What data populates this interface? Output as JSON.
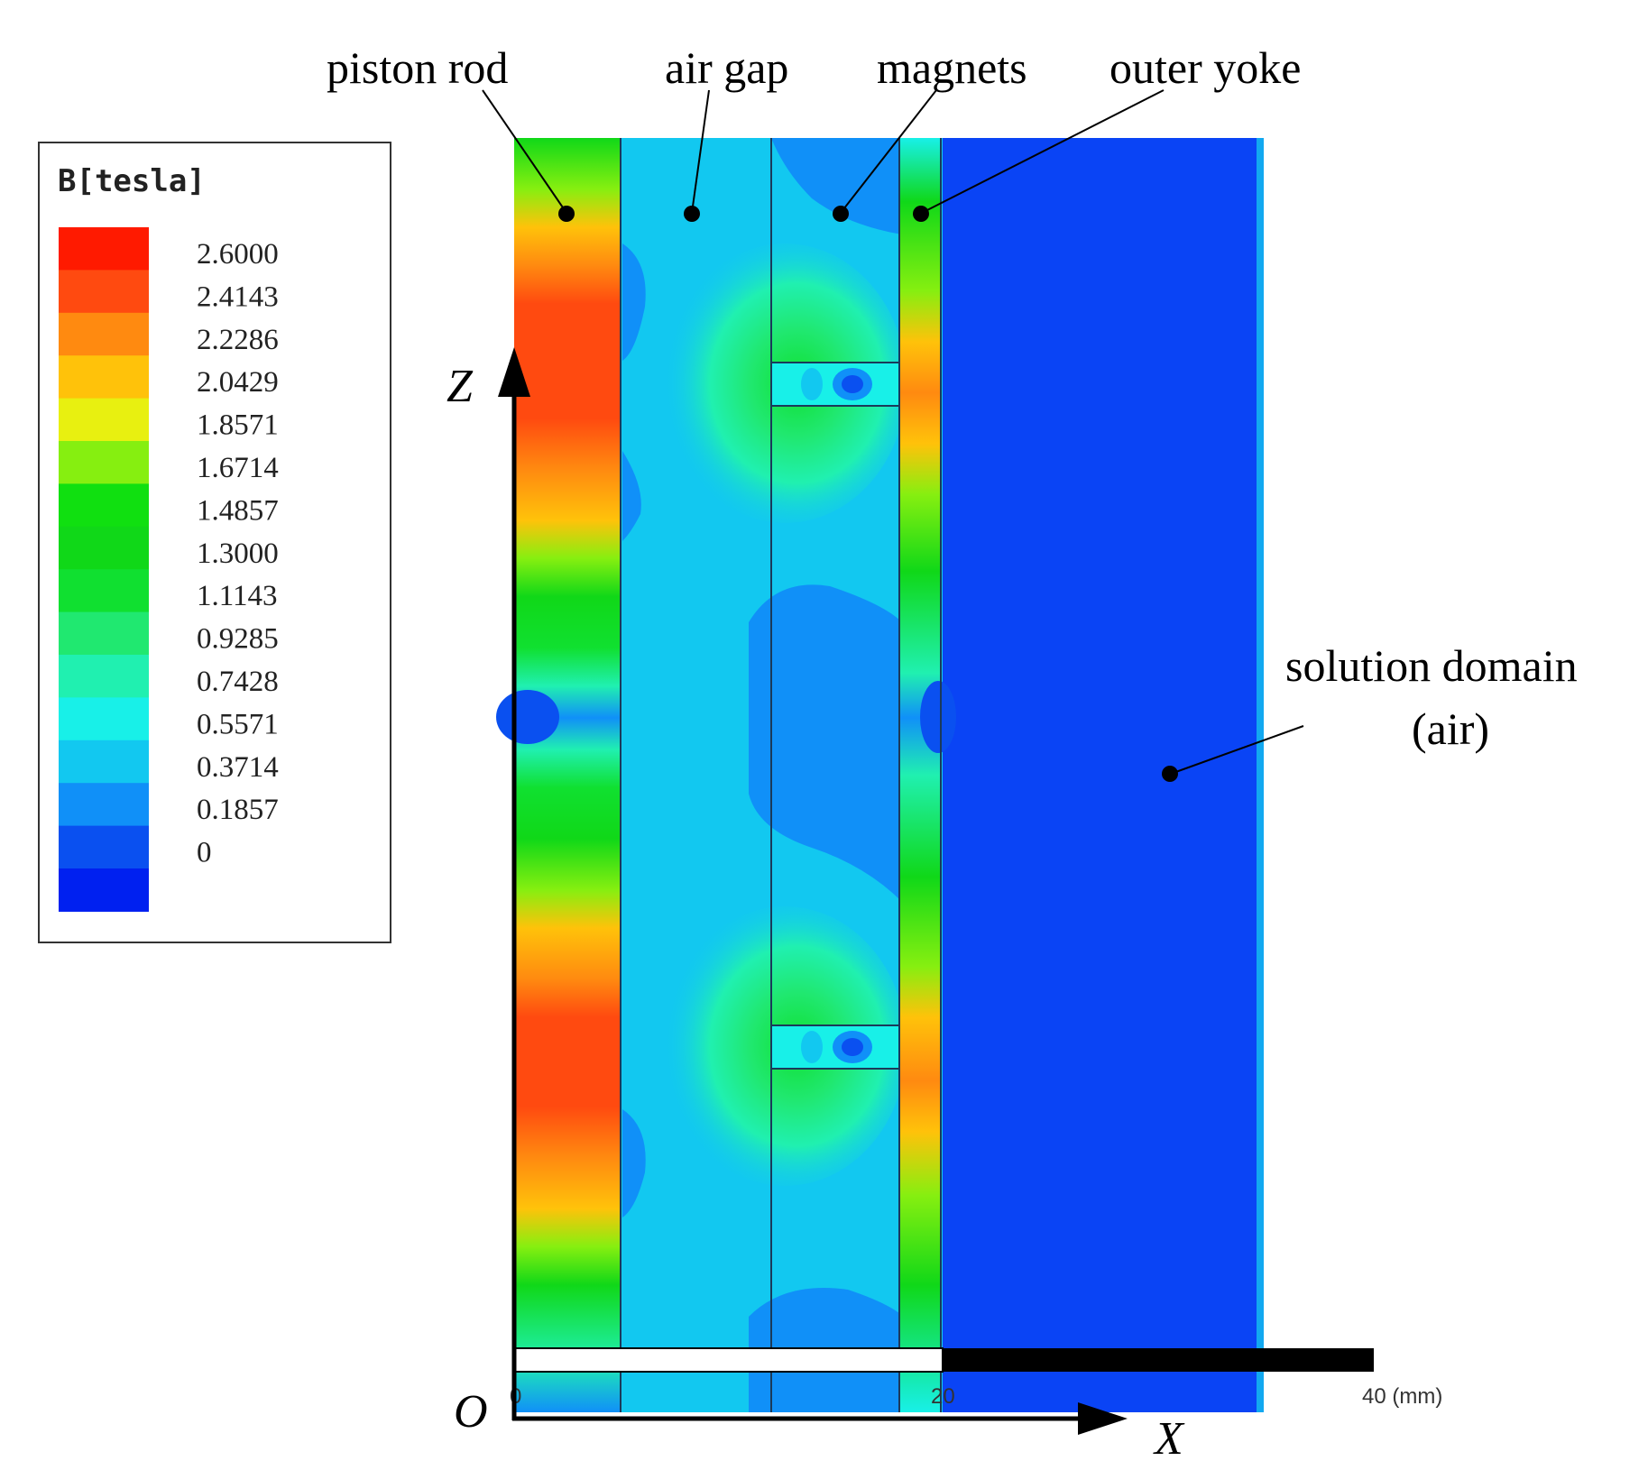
{
  "legend": {
    "title": "B[tesla]",
    "entries": [
      {
        "label": "2.6000",
        "color": "#ff1a00"
      },
      {
        "label": "2.4143",
        "color": "#ff4a10"
      },
      {
        "label": "2.2286",
        "color": "#ff8a10"
      },
      {
        "label": "2.0429",
        "color": "#ffc20a"
      },
      {
        "label": "1.8571",
        "color": "#e8f010"
      },
      {
        "label": "1.6714",
        "color": "#86ef10"
      },
      {
        "label": "1.4857",
        "color": "#10e010"
      },
      {
        "label": "1.3000",
        "color": "#10d818"
      },
      {
        "label": "1.1143",
        "color": "#10e030"
      },
      {
        "label": "0.9285",
        "color": "#20e870"
      },
      {
        "label": "0.7428",
        "color": "#20f0b0"
      },
      {
        "label": "0.5571",
        "color": "#18f0e8"
      },
      {
        "label": "0.3714",
        "color": "#12c8f0"
      },
      {
        "label": "0.1857",
        "color": "#1090f8"
      },
      {
        "label": "0",
        "color": "#0a50f0"
      },
      {
        "label": "",
        "color": "#0020f0"
      }
    ]
  },
  "labels": {
    "piston_rod": "piston rod",
    "air_gap": "air gap",
    "magnets": "magnets",
    "outer_yoke": "outer yoke",
    "solution_domain": "solution domain",
    "solution_domain_sub": "(air)"
  },
  "axes": {
    "z_label": "Z",
    "x_label": "X",
    "origin_label": "O"
  },
  "scale_bar": {
    "tick_0": "0",
    "tick_20": "20",
    "tick_40": "40 (mm)"
  },
  "colors": {
    "rod_green": "#10d818",
    "rod_red": "#ff4a10",
    "air_light": "#12c8f0",
    "air_mid": "#1090f8",
    "domain_blue": "#0a44f5",
    "domain_edge": "#12a8f0"
  }
}
